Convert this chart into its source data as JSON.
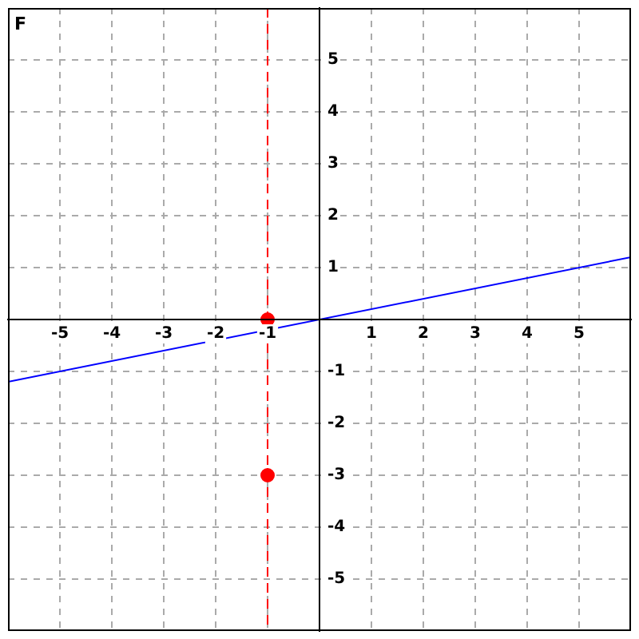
{
  "chart_data": {
    "type": "line",
    "title": "F",
    "xlim": [
      -6,
      6
    ],
    "ylim": [
      -6,
      6
    ],
    "xticks": [
      -5,
      -4,
      -3,
      -2,
      -1,
      1,
      2,
      3,
      4,
      5
    ],
    "yticks": [
      -5,
      -4,
      -3,
      -2,
      -1,
      1,
      2,
      3,
      4,
      5
    ],
    "grid": true,
    "legend": false,
    "series": [
      {
        "type": "line",
        "color": "#0000ff",
        "x": [
          -6,
          6
        ],
        "values": [
          -1.2,
          1.2
        ],
        "marker": "none"
      },
      {
        "type": "scatter",
        "color": "#ff0000",
        "x": [
          -1,
          -1
        ],
        "values": [
          0,
          -3
        ],
        "marker": "circle"
      }
    ],
    "ref_lines": [
      {
        "axis": "x",
        "value": -1,
        "color": "#ff0000",
        "line_style": "dashed"
      }
    ]
  }
}
